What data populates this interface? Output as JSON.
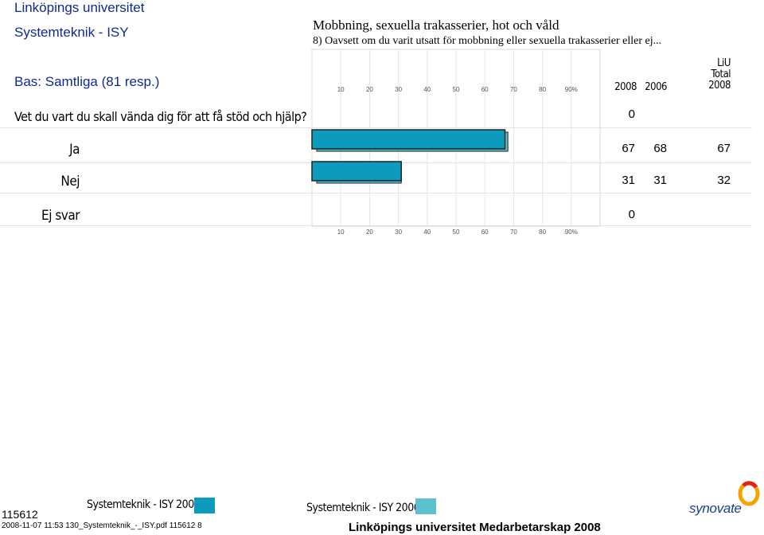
{
  "header": {
    "organization": "Linköpings universitet",
    "department": "Systemteknik - ISY",
    "base": "Bas: Samtliga (81 resp.)",
    "section_title": "Mobbning, sexuella trakasserier, hot och våld",
    "question_sub": "8) Oavsett om du varit utsatt för mobbning eller sexuella trakasserier eller ej..."
  },
  "question": "Vet du vart du skall vända dig för att få stöd och hjälp?",
  "columns": {
    "col1": "2008",
    "col2": "2006",
    "col3_line1": "LiU",
    "col3_line2": "Total",
    "col3_line3": "2008"
  },
  "question_row_value": "0",
  "rows": [
    {
      "label": "Ja",
      "v2008": "67",
      "v2006": "68",
      "liu": "67"
    },
    {
      "label": "Nej",
      "v2008": "31",
      "v2006": "31",
      "liu": "32"
    },
    {
      "label": "Ej svar",
      "v2008": "0",
      "v2006": "",
      "liu": ""
    }
  ],
  "chart_data": {
    "type": "bar",
    "orientation": "horizontal",
    "categories": [
      "Ja",
      "Nej",
      "Ej svar"
    ],
    "series": [
      {
        "name": "Systemteknik - ISY 2008",
        "values": [
          67,
          31,
          0
        ],
        "color": "#0c9bbc"
      },
      {
        "name": "Systemteknik - ISY 2006",
        "values": [
          68,
          31,
          0
        ],
        "color": "#5cc0cf"
      }
    ],
    "xlim": [
      0,
      100
    ],
    "tick_values": [
      10,
      20,
      30,
      40,
      50,
      60,
      70,
      80,
      90
    ],
    "tick_labels": [
      "10",
      "20",
      "30",
      "40",
      "50",
      "60",
      "70",
      "80",
      "90%"
    ],
    "grid": true
  },
  "legend": {
    "label_2008": "Systemteknik - ISY 2008",
    "label_2006": "Systemteknik - ISY 2006",
    "color_2008": "#0c9bbc",
    "color_2006": "#5cc0cf"
  },
  "footer": {
    "page_code": "115612",
    "file": "2008-11-07 11:53 130_Systemteknik_-_ISY.pdf 115612  8",
    "title": "Linköpings universitet Medarbetarskap 2008",
    "logo": "synovate"
  }
}
